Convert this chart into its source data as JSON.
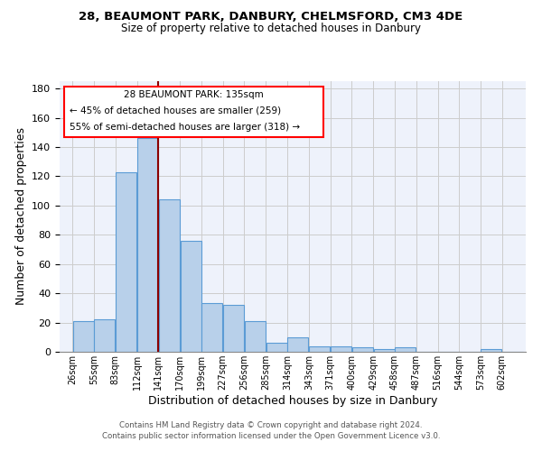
{
  "title1": "28, BEAUMONT PARK, DANBURY, CHELMSFORD, CM3 4DE",
  "title2": "Size of property relative to detached houses in Danbury",
  "xlabel": "Distribution of detached houses by size in Danbury",
  "ylabel": "Number of detached properties",
  "bar_labels": [
    "26sqm",
    "55sqm",
    "83sqm",
    "112sqm",
    "141sqm",
    "170sqm",
    "199sqm",
    "227sqm",
    "256sqm",
    "285sqm",
    "314sqm",
    "343sqm",
    "371sqm",
    "400sqm",
    "429sqm",
    "458sqm",
    "487sqm",
    "516sqm",
    "544sqm",
    "573sqm",
    "602sqm"
  ],
  "bar_values": [
    21,
    22,
    123,
    146,
    104,
    76,
    33,
    32,
    21,
    6,
    10,
    4,
    4,
    3,
    2,
    3,
    0,
    0,
    0,
    2,
    0
  ],
  "bar_color": "#b8d0ea",
  "bar_edge_color": "#5b9bd5",
  "property_label": "28 BEAUMONT PARK: 135sqm",
  "pct_smaller": 45,
  "count_smaller": 259,
  "pct_larger": 55,
  "count_larger": 318,
  "footer1": "Contains HM Land Registry data © Crown copyright and database right 2024.",
  "footer2": "Contains public sector information licensed under the Open Government Licence v3.0.",
  "bin_width": 29,
  "ylim_min": 0,
  "ylim_max": 185,
  "background_color": "#eef2fb",
  "grid_color": "#cccccc"
}
